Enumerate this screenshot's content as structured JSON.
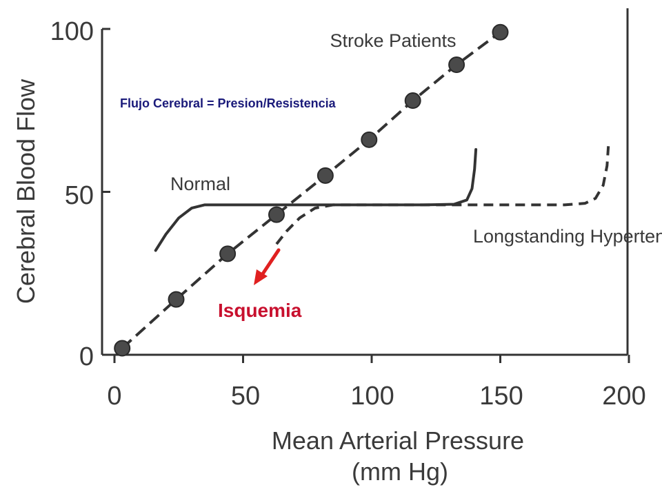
{
  "chart_data": {
    "type": "line",
    "title": "",
    "xlabel": "Mean Arterial Pressure",
    "xlabel_unit": "(mm Hg)",
    "ylabel": "Cerebral Blood Flow",
    "xlim": [
      0,
      200
    ],
    "ylim": [
      0,
      100
    ],
    "x_ticks": [
      "0",
      "50",
      "100",
      "150",
      "200"
    ],
    "y_ticks": [
      "0",
      "50",
      "100"
    ],
    "grid": false,
    "series": [
      {
        "name": "Stroke Patients",
        "style": "dashed-with-markers",
        "color": "#333333",
        "x": [
          3,
          24,
          44,
          63,
          82,
          99,
          116,
          133,
          150
        ],
        "y": [
          2,
          17,
          31,
          43,
          55,
          66,
          78,
          89,
          99
        ]
      },
      {
        "name": "Normal",
        "style": "solid",
        "color": "#333333",
        "x": [
          16,
          20,
          25,
          30,
          35,
          45,
          60,
          80,
          100,
          120,
          132,
          137,
          139,
          140,
          140.5
        ],
        "y": [
          32,
          37,
          42,
          45,
          46,
          46,
          46,
          46,
          46,
          46,
          46.2,
          47.5,
          51,
          57,
          63
        ]
      },
      {
        "name": "Longstanding Hypertension",
        "style": "dashed",
        "color": "#333333",
        "x": [
          63,
          67,
          72,
          78,
          85,
          100,
          120,
          150,
          175,
          183,
          187,
          190,
          191.5,
          192
        ],
        "y": [
          34,
          38,
          42,
          45,
          46,
          46,
          46,
          46,
          46,
          46.5,
          48,
          52,
          58,
          64
        ]
      }
    ],
    "annotations": {
      "formula": "Flujo Cerebral = Presion/Resistencia",
      "isquemia": "Isquemia",
      "isquemia_color": "#c8102e",
      "arrow_color": "#e02020"
    }
  }
}
